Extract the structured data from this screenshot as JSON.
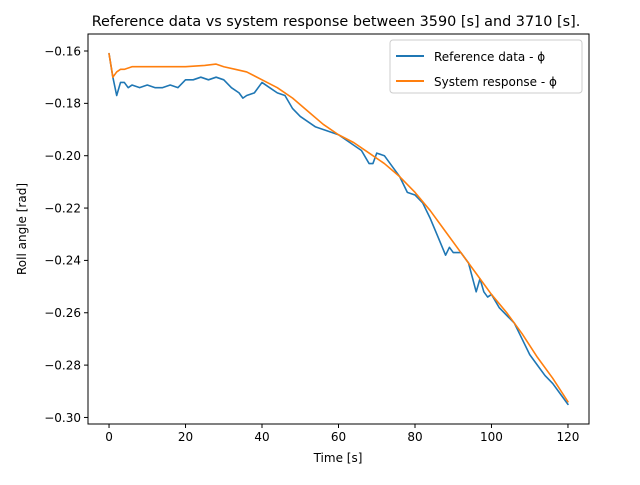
{
  "chart_data": {
    "type": "line",
    "title": "Reference data vs system response between 3590 [s] and 3710 [s].",
    "xlabel": "Time [s]",
    "ylabel": "Roll angle [rad]",
    "xlim": [
      -5.5,
      125.5
    ],
    "ylim": [
      -0.3025,
      -0.1535
    ],
    "xticks": [
      0,
      20,
      40,
      60,
      80,
      100,
      120
    ],
    "xtick_labels": [
      "0",
      "20",
      "40",
      "60",
      "80",
      "100",
      "120"
    ],
    "yticks": [
      -0.3,
      -0.28,
      -0.26,
      -0.24,
      -0.22,
      -0.2,
      -0.18,
      -0.16
    ],
    "ytick_labels": [
      "−0.30",
      "−0.28",
      "−0.26",
      "−0.24",
      "−0.22",
      "−0.20",
      "−0.18",
      "−0.16"
    ],
    "grid": false,
    "legend_position": "upper right",
    "series": [
      {
        "name": "Reference data - ϕ",
        "color": "#1f77b4",
        "x": [
          0,
          1,
          2,
          3,
          4,
          5,
          6,
          8,
          10,
          12,
          14,
          16,
          18,
          20,
          22,
          24,
          26,
          28,
          30,
          32,
          34,
          35,
          36,
          38,
          40,
          42,
          44,
          46,
          48,
          50,
          52,
          54,
          56,
          58,
          60,
          62,
          64,
          66,
          68,
          69,
          70,
          72,
          74,
          76,
          78,
          80,
          82,
          84,
          86,
          88,
          89,
          90,
          91,
          92,
          94,
          96,
          97,
          98,
          99,
          100,
          102,
          104,
          106,
          108,
          110,
          112,
          114,
          116,
          118,
          120
        ],
        "y": [
          -0.161,
          -0.17,
          -0.177,
          -0.172,
          -0.172,
          -0.174,
          -0.173,
          -0.174,
          -0.173,
          -0.174,
          -0.174,
          -0.173,
          -0.174,
          -0.171,
          -0.171,
          -0.17,
          -0.171,
          -0.17,
          -0.171,
          -0.174,
          -0.176,
          -0.178,
          -0.177,
          -0.176,
          -0.172,
          -0.174,
          -0.176,
          -0.177,
          -0.182,
          -0.185,
          -0.187,
          -0.189,
          -0.19,
          -0.191,
          -0.192,
          -0.194,
          -0.196,
          -0.198,
          -0.203,
          -0.203,
          -0.199,
          -0.2,
          -0.204,
          -0.208,
          -0.214,
          -0.215,
          -0.218,
          -0.224,
          -0.231,
          -0.238,
          -0.235,
          -0.237,
          -0.237,
          -0.237,
          -0.241,
          -0.252,
          -0.247,
          -0.252,
          -0.254,
          -0.253,
          -0.258,
          -0.261,
          -0.264,
          -0.27,
          -0.276,
          -0.28,
          -0.284,
          -0.287,
          -0.291,
          -0.295
        ]
      },
      {
        "name": "System response - ϕ",
        "color": "#ff7f0e",
        "x": [
          0,
          1,
          2,
          3,
          4,
          6,
          8,
          10,
          15,
          20,
          25,
          28,
          30,
          33,
          36,
          40,
          44,
          48,
          52,
          56,
          60,
          64,
          68,
          72,
          76,
          80,
          84,
          88,
          92,
          96,
          100,
          104,
          108,
          112,
          116,
          120
        ],
        "y": [
          -0.161,
          -0.17,
          -0.168,
          -0.167,
          -0.167,
          -0.166,
          -0.166,
          -0.166,
          -0.166,
          -0.166,
          -0.1655,
          -0.165,
          -0.166,
          -0.167,
          -0.168,
          -0.171,
          -0.174,
          -0.178,
          -0.183,
          -0.188,
          -0.192,
          -0.195,
          -0.199,
          -0.203,
          -0.208,
          -0.214,
          -0.221,
          -0.229,
          -0.237,
          -0.245,
          -0.253,
          -0.26,
          -0.268,
          -0.277,
          -0.285,
          -0.294
        ]
      }
    ]
  }
}
